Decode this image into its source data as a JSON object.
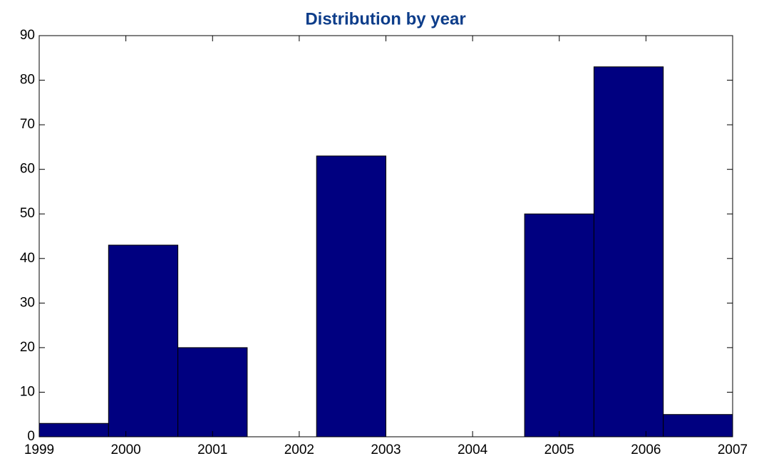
{
  "chart_data": {
    "type": "histogram",
    "title": "Distribution by year",
    "bins": [
      1999,
      1999.8,
      2000.6,
      2001.4,
      2002.2,
      2003,
      2003.8,
      2004.6,
      2005.4,
      2006.2,
      2007
    ],
    "values": [
      3,
      43,
      20,
      0,
      63,
      0,
      0,
      50,
      83,
      5
    ],
    "color": "#000080",
    "xlim": [
      1999,
      2007
    ],
    "xticks": [
      1999,
      2000,
      2001,
      2002,
      2003,
      2004,
      2005,
      2006,
      2007
    ],
    "ylim": [
      0,
      90
    ],
    "yticks": [
      0,
      10,
      20,
      30,
      40,
      50,
      60,
      70,
      80,
      90
    ]
  }
}
